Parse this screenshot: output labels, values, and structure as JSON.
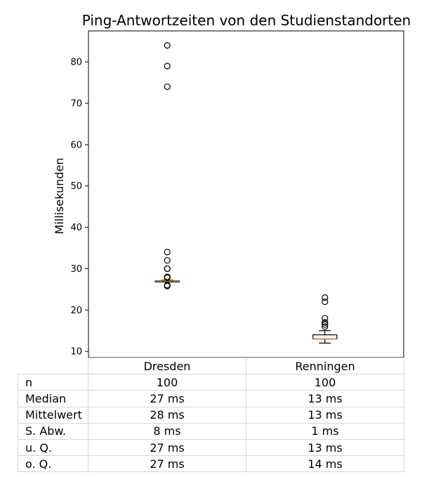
{
  "chart_data": {
    "type": "box",
    "title": "Ping-Antwortzeiten von den Studienstandorten",
    "ylabel": "Millisekunden",
    "xlabel": "",
    "ylim": [
      8.5,
      87.5
    ],
    "yticks": [
      10,
      20,
      30,
      40,
      50,
      60,
      70,
      80
    ],
    "categories": [
      "Dresden",
      "Renningen"
    ],
    "grid": false,
    "series": [
      {
        "category": "Dresden",
        "whisker_low": 26.8,
        "q1": 26.8,
        "median": 27,
        "q3": 27.1,
        "whisker_high": 27.2,
        "outliers": [
          84,
          79,
          74,
          34,
          32,
          30,
          30,
          28,
          28,
          27.8,
          26,
          26,
          25.8
        ]
      },
      {
        "category": "Renningen",
        "whisker_low": 12,
        "q1": 13,
        "median": 13,
        "q3": 14,
        "whisker_high": 15,
        "outliers": [
          23,
          22,
          18,
          17,
          17,
          16.5,
          16
        ]
      }
    ],
    "colors": {
      "box": "#000000",
      "median": "#e0812c",
      "outlier": "#000000"
    }
  },
  "table": {
    "columns": [
      "Dresden",
      "Renningen"
    ],
    "rows": [
      {
        "label": "n",
        "values": [
          "100",
          "100"
        ]
      },
      {
        "label": "Median",
        "values": [
          "27 ms",
          "13 ms"
        ]
      },
      {
        "label": "Mittelwert",
        "values": [
          "28 ms",
          "13 ms"
        ]
      },
      {
        "label": "S. Abw.",
        "values": [
          "8 ms",
          "1 ms"
        ]
      },
      {
        "label": "u. Q.",
        "values": [
          "27 ms",
          "13 ms"
        ]
      },
      {
        "label": "o. Q.",
        "values": [
          "27 ms",
          "14 ms"
        ]
      }
    ]
  }
}
